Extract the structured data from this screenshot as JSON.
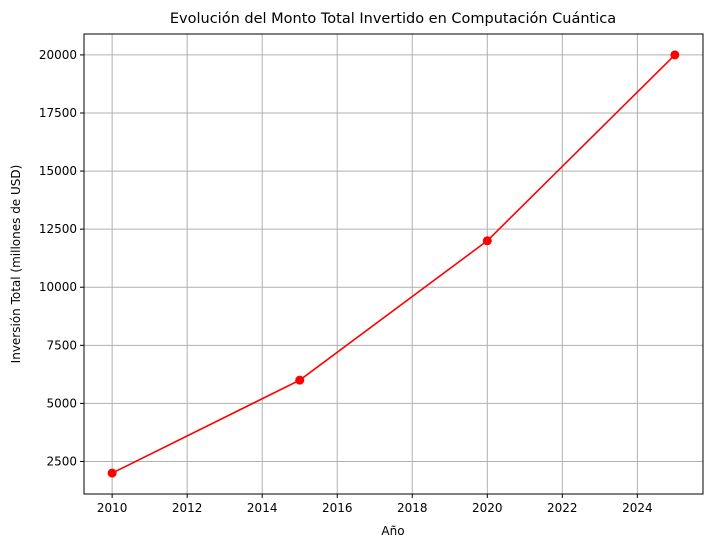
{
  "chart_data": {
    "type": "line",
    "title": "Evolución del Monto Total Invertido en Computación Cuántica",
    "xlabel": "Año",
    "ylabel": "Inversión Total (millones de USD)",
    "x": [
      2010,
      2015,
      2020,
      2025
    ],
    "series": [
      {
        "values": [
          2000,
          6000,
          12000,
          20000
        ],
        "color": "#ff0000",
        "marker": "circle"
      }
    ],
    "xlim": [
      2009.25,
      2025.75
    ],
    "ylim": [
      1100,
      20900
    ],
    "xticks": [
      2010,
      2012,
      2014,
      2016,
      2018,
      2020,
      2022,
      2024
    ],
    "yticks": [
      2500,
      5000,
      7500,
      10000,
      12500,
      15000,
      17500,
      20000
    ],
    "grid": true
  }
}
